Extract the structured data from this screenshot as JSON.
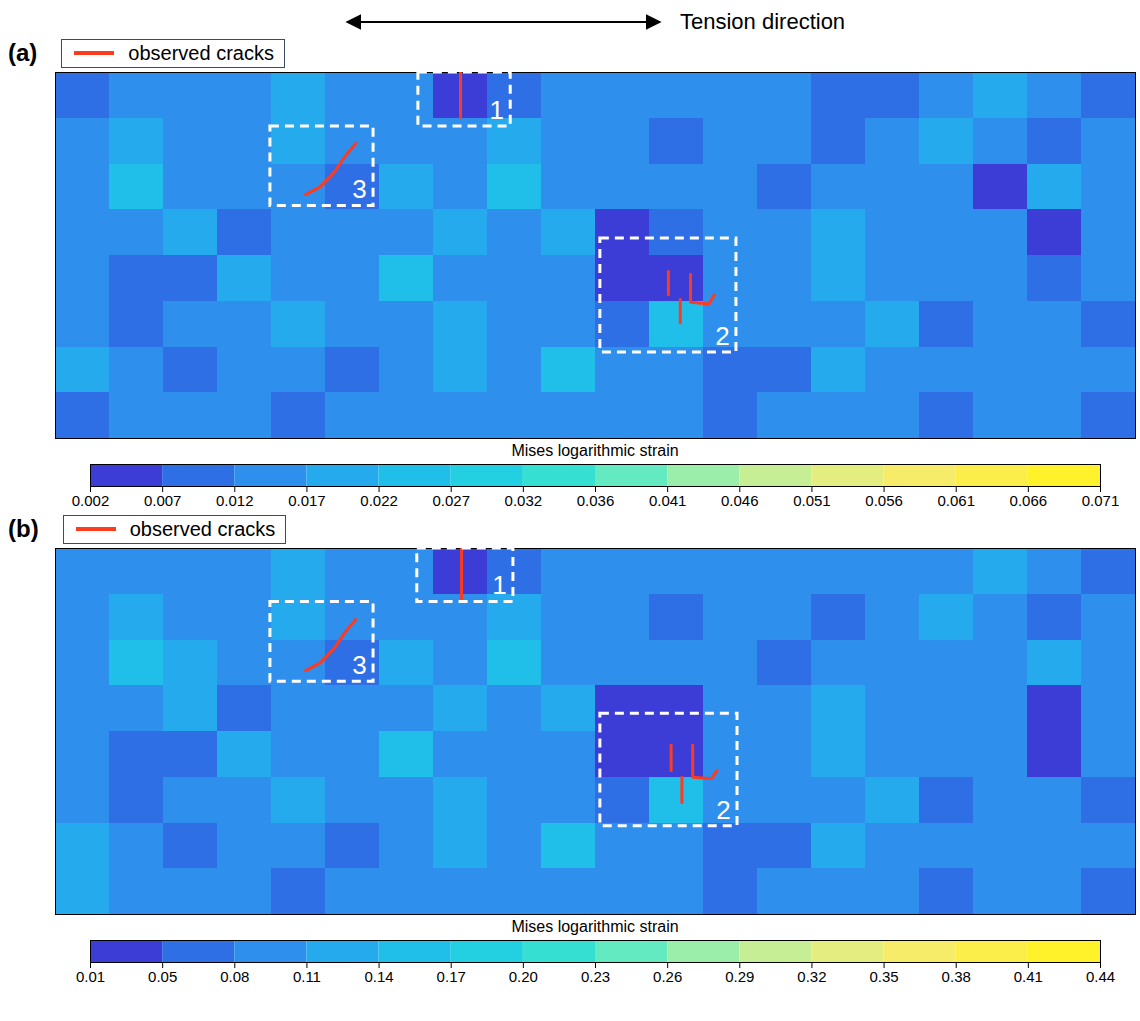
{
  "chart_data": [
    {
      "type": "heatmap",
      "title": "(a)",
      "annotations": [
        "Tension direction"
      ],
      "xlim": [
        0,
        20
      ],
      "ylim": [
        0,
        8
      ],
      "tick_labels": false,
      "legend": "top left",
      "cells": [
        [
          0.008,
          0.014,
          0.016,
          0.013,
          0.017,
          0.014,
          0.016,
          0.004,
          0.008,
          0.015,
          0.013,
          0.012,
          0.014,
          0.012,
          0.011,
          0.007,
          0.015,
          0.017,
          0.013,
          0.008
        ],
        [
          0.015,
          0.02,
          0.012,
          0.016,
          0.018,
          0.015,
          0.014,
          0.012,
          0.018,
          0.012,
          0.014,
          0.009,
          0.016,
          0.013,
          0.008,
          0.012,
          0.018,
          0.016,
          0.011,
          0.014
        ],
        [
          0.013,
          0.022,
          0.014,
          0.012,
          0.016,
          0.01,
          0.018,
          0.015,
          0.024,
          0.016,
          0.012,
          0.014,
          0.015,
          0.01,
          0.014,
          0.016,
          0.012,
          0.006,
          0.018,
          0.013
        ],
        [
          0.016,
          0.014,
          0.02,
          0.009,
          0.016,
          0.015,
          0.013,
          0.018,
          0.016,
          0.02,
          0.006,
          0.007,
          0.016,
          0.014,
          0.018,
          0.015,
          0.013,
          0.016,
          0.005,
          0.012
        ],
        [
          0.012,
          0.008,
          0.01,
          0.018,
          0.014,
          0.016,
          0.022,
          0.015,
          0.013,
          0.014,
          0.004,
          0.005,
          0.014,
          0.016,
          0.019,
          0.014,
          0.012,
          0.015,
          0.007,
          0.014
        ],
        [
          0.014,
          0.007,
          0.012,
          0.015,
          0.018,
          0.013,
          0.016,
          0.02,
          0.014,
          0.016,
          0.01,
          0.024,
          0.012,
          0.015,
          0.013,
          0.017,
          0.011,
          0.014,
          0.013,
          0.01
        ],
        [
          0.017,
          0.013,
          0.01,
          0.016,
          0.012,
          0.009,
          0.014,
          0.017,
          0.012,
          0.022,
          0.016,
          0.013,
          0.011,
          0.009,
          0.018,
          0.014,
          0.012,
          0.015,
          0.012,
          0.014
        ],
        [
          0.011,
          0.015,
          0.013,
          0.016,
          0.01,
          0.014,
          0.012,
          0.016,
          0.013,
          0.015,
          0.014,
          0.012,
          0.01,
          0.015,
          0.012,
          0.013,
          0.007,
          0.016,
          0.013,
          0.011
        ]
      ],
      "colorbar": {
        "label": "Mises logarithmic strain",
        "range": [
          0.002,
          0.071
        ],
        "ticks": [
          0.002,
          0.007,
          0.012,
          0.017,
          0.022,
          0.027,
          0.032,
          0.036,
          0.041,
          0.046,
          0.051,
          0.056,
          0.061,
          0.066,
          0.071
        ],
        "colors": [
          "#3b3dd6",
          "#2f6fe6",
          "#2e90ec",
          "#25aaee",
          "#1fbfea",
          "#22d0e2",
          "#35dfd2",
          "#64eac0",
          "#9bedaa",
          "#c6ee94",
          "#e4ee80",
          "#f6ec6a",
          "#fcee4a",
          "#fff22a"
        ]
      },
      "boxes": [
        {
          "label": "1",
          "x": [
            6.72,
            8.43
          ],
          "y": [
            0,
            1.18
          ]
        },
        {
          "label": "3",
          "x": [
            3.98,
            5.89
          ],
          "y": [
            1.18,
            2.92
          ]
        },
        {
          "label": "2",
          "x": [
            10.09,
            12.61
          ],
          "y": [
            3.63,
            6.12
          ]
        }
      ],
      "cracks": {
        "name": "observed cracks",
        "color": "#ff3b1f",
        "lines": [
          {
            "x": [
              7.5,
              7.5
            ],
            "y": [
              0,
              0.98
            ]
          },
          {
            "x": [
              4.63,
              4.9,
              5.15,
              5.35,
              5.56
            ],
            "y": [
              2.67,
              2.5,
              2.2,
              1.85,
              1.55
            ]
          },
          {
            "x": [
              11.35,
              11.35
            ],
            "y": [
              4.35,
              4.86
            ]
          },
          {
            "x": [
              11.76,
              11.76,
              12.1,
              12.2
            ],
            "y": [
              4.41,
              5.02,
              5.06,
              4.86
            ]
          },
          {
            "x": [
              11.57,
              11.57
            ],
            "y": [
              4.96,
              5.47
            ]
          }
        ]
      }
    },
    {
      "type": "heatmap",
      "title": "(b)",
      "xlim": [
        0,
        20
      ],
      "ylim": [
        0,
        8
      ],
      "tick_labels": false,
      "legend": "top left",
      "cells": [
        [
          0.09,
          0.095,
          0.105,
          0.09,
          0.12,
          0.095,
          0.105,
          0.03,
          0.06,
          0.1,
          0.09,
          0.08,
          0.095,
          0.09,
          0.085,
          0.1,
          0.105,
          0.11,
          0.09,
          0.07
        ],
        [
          0.1,
          0.13,
          0.085,
          0.105,
          0.12,
          0.1,
          0.095,
          0.085,
          0.12,
          0.08,
          0.095,
          0.07,
          0.105,
          0.09,
          0.065,
          0.085,
          0.12,
          0.105,
          0.075,
          0.095
        ],
        [
          0.09,
          0.15,
          0.12,
          0.085,
          0.105,
          0.07,
          0.12,
          0.1,
          0.16,
          0.105,
          0.08,
          0.095,
          0.1,
          0.07,
          0.095,
          0.105,
          0.085,
          0.09,
          0.12,
          0.09
        ],
        [
          0.105,
          0.095,
          0.13,
          0.065,
          0.105,
          0.1,
          0.09,
          0.12,
          0.105,
          0.13,
          0.04,
          0.045,
          0.105,
          0.095,
          0.12,
          0.1,
          0.09,
          0.105,
          0.04,
          0.085
        ],
        [
          0.085,
          0.06,
          0.07,
          0.12,
          0.095,
          0.105,
          0.14,
          0.1,
          0.09,
          0.095,
          0.03,
          0.035,
          0.095,
          0.105,
          0.125,
          0.095,
          0.085,
          0.1,
          0.04,
          0.095
        ],
        [
          0.095,
          0.05,
          0.085,
          0.1,
          0.12,
          0.09,
          0.105,
          0.13,
          0.095,
          0.105,
          0.07,
          0.16,
          0.085,
          0.1,
          0.09,
          0.11,
          0.075,
          0.095,
          0.09,
          0.07
        ],
        [
          0.11,
          0.09,
          0.07,
          0.105,
          0.085,
          0.065,
          0.095,
          0.11,
          0.085,
          0.15,
          0.105,
          0.09,
          0.075,
          0.065,
          0.12,
          0.095,
          0.085,
          0.1,
          0.085,
          0.095
        ],
        [
          0.12,
          0.1,
          0.09,
          0.105,
          0.07,
          0.095,
          0.085,
          0.105,
          0.09,
          0.1,
          0.095,
          0.085,
          0.07,
          0.1,
          0.085,
          0.09,
          0.05,
          0.105,
          0.09,
          0.075
        ]
      ],
      "colorbar": {
        "label": "Mises logarithmic strain",
        "range": [
          0.01,
          0.44
        ],
        "ticks": [
          0.01,
          0.05,
          0.08,
          0.11,
          0.14,
          0.17,
          {
            "value": 0.2,
            "label": "0.20"
          },
          0.23,
          0.26,
          0.29,
          0.32,
          0.35,
          0.38,
          0.41,
          0.44
        ],
        "colors": [
          "#3b3dd6",
          "#2f6fe6",
          "#2e90ec",
          "#25aaee",
          "#1fbfea",
          "#22d0e2",
          "#35dfd2",
          "#64eac0",
          "#9bedaa",
          "#c6ee94",
          "#e4ee80",
          "#f6ec6a",
          "#fcee4a",
          "#fff22a"
        ]
      },
      "boxes": [
        {
          "label": "1",
          "x": [
            6.7,
            8.48
          ],
          "y": [
            0,
            1.17
          ]
        },
        {
          "label": "3",
          "x": [
            3.98,
            5.89
          ],
          "y": [
            1.17,
            2.91
          ]
        },
        {
          "label": "2",
          "x": [
            10.09,
            12.63
          ],
          "y": [
            3.61,
            6.07
          ]
        }
      ],
      "cracks": {
        "name": "observed cracks",
        "color": "#ff3b1f",
        "lines": [
          {
            "x": [
              7.52,
              7.52
            ],
            "y": [
              0,
              1.1
            ]
          },
          {
            "x": [
              4.63,
              4.9,
              5.15,
              5.35,
              5.56
            ],
            "y": [
              2.67,
              2.5,
              2.2,
              1.85,
              1.55
            ]
          },
          {
            "x": [
              11.4,
              11.4
            ],
            "y": [
              4.3,
              4.85
            ]
          },
          {
            "x": [
              11.8,
              11.8,
              12.15,
              12.25
            ],
            "y": [
              4.3,
              5.0,
              5.03,
              4.85
            ]
          },
          {
            "x": [
              11.6,
              11.6
            ],
            "y": [
              5.0,
              5.55
            ]
          }
        ]
      }
    }
  ]
}
